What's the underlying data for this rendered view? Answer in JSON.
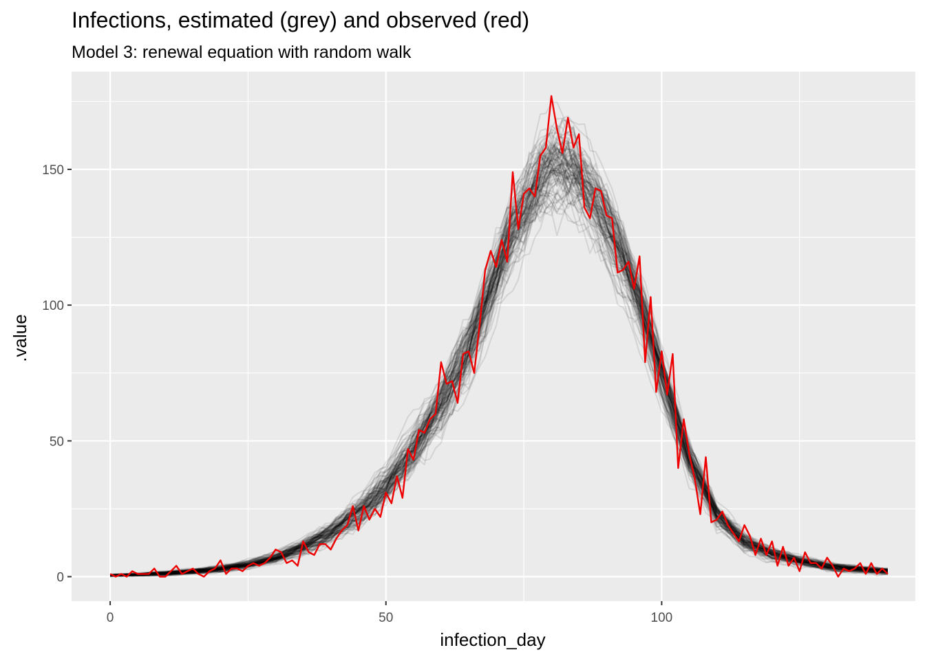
{
  "chart_data": {
    "type": "line",
    "title": "Infections, estimated (grey) and observed (red)",
    "subtitle": "Model 3: renewal equation with random walk",
    "xlabel": "infection_day",
    "ylabel": ".value",
    "xlim": [
      -7,
      146
    ],
    "ylim": [
      -9,
      186
    ],
    "x_ticks": [
      0,
      50,
      100
    ],
    "y_ticks": [
      0,
      50,
      100,
      150
    ],
    "grid": true,
    "legend": "none",
    "colors": {
      "panel": "#ebebeb",
      "grid": "#ffffff",
      "estimated": "#000000",
      "observed": "#ee0000"
    },
    "estimated_draws": {
      "count": 100,
      "x": [
        0,
        5,
        10,
        15,
        20,
        25,
        30,
        35,
        40,
        45,
        50,
        55,
        60,
        65,
        70,
        73,
        76,
        78,
        80,
        82,
        84,
        86,
        88,
        90,
        93,
        96,
        100,
        105,
        110,
        115,
        120,
        125,
        130,
        135,
        141
      ],
      "median": [
        0.5,
        0.8,
        1.3,
        2.0,
        3.0,
        4.5,
        7.0,
        11.0,
        16.5,
        24.0,
        34.0,
        47.0,
        64.0,
        85.0,
        112.0,
        129.0,
        141.0,
        148.0,
        152.0,
        153.0,
        150.0,
        145.0,
        139.0,
        131.0,
        118.0,
        102.0,
        75.0,
        44.0,
        23.0,
        13.0,
        8.5,
        6.0,
        4.0,
        3.0,
        2.0
      ],
      "spread": [
        0.3,
        0.3,
        0.5,
        0.6,
        0.8,
        1.0,
        1.3,
        1.8,
        2.5,
        3.5,
        4.5,
        5.5,
        6.5,
        8.0,
        9.0,
        9.5,
        10.0,
        11.0,
        11.0,
        11.0,
        11.0,
        10.0,
        9.0,
        8.5,
        8.0,
        7.0,
        6.0,
        4.5,
        3.0,
        2.2,
        1.6,
        1.2,
        1.0,
        0.9,
        0.8
      ]
    },
    "observed": {
      "x": [
        0,
        1,
        2,
        3,
        4,
        5,
        6,
        7,
        8,
        9,
        10,
        11,
        12,
        13,
        14,
        15,
        16,
        17,
        18,
        19,
        20,
        21,
        22,
        23,
        24,
        25,
        26,
        27,
        28,
        29,
        30,
        31,
        32,
        33,
        34,
        35,
        36,
        37,
        38,
        39,
        40,
        41,
        42,
        43,
        44,
        45,
        46,
        47,
        48,
        49,
        50,
        51,
        52,
        53,
        54,
        55,
        56,
        57,
        58,
        59,
        60,
        61,
        62,
        63,
        64,
        65,
        66,
        67,
        68,
        69,
        70,
        71,
        72,
        73,
        74,
        75,
        76,
        77,
        78,
        79,
        80,
        81,
        82,
        83,
        84,
        85,
        86,
        87,
        88,
        89,
        90,
        91,
        92,
        93,
        94,
        95,
        96,
        97,
        98,
        99,
        100,
        101,
        102,
        103,
        104,
        105,
        106,
        107,
        108,
        109,
        110,
        111,
        112,
        113,
        114,
        115,
        116,
        117,
        118,
        119,
        120,
        121,
        122,
        123,
        124,
        125,
        126,
        127,
        128,
        129,
        130,
        131,
        132,
        133,
        134,
        135,
        136,
        137,
        138,
        139,
        140,
        141
      ],
      "y": [
        1,
        0,
        1,
        0,
        2,
        1,
        1,
        1,
        3,
        0,
        0,
        2,
        4,
        1,
        2,
        3,
        1,
        0,
        2,
        3,
        6,
        1,
        3,
        3,
        2,
        4,
        5,
        4,
        5,
        7,
        10,
        9,
        5,
        6,
        4,
        13,
        9,
        8,
        12,
        12,
        10,
        14,
        17,
        19,
        26,
        17,
        26,
        21,
        25,
        22,
        31,
        27,
        37,
        29,
        47,
        43,
        54,
        53,
        58,
        60,
        79,
        71,
        72,
        64,
        82,
        83,
        75,
        93,
        113,
        120,
        114,
        124,
        116,
        149,
        128,
        141,
        143,
        140,
        155,
        158,
        177,
        165,
        156,
        169,
        158,
        163,
        136,
        132,
        143,
        142,
        133,
        132,
        112,
        113,
        116,
        106,
        118,
        79,
        103,
        68,
        83,
        67,
        82,
        40,
        58,
        45,
        36,
        23,
        44,
        20,
        21,
        24,
        19,
        16,
        13,
        19,
        15,
        8,
        14,
        8,
        13,
        4,
        11,
        4,
        7,
        2,
        9,
        5,
        5,
        3,
        7,
        4,
        0,
        3,
        2,
        3,
        5,
        1,
        5,
        1,
        3,
        1
      ]
    }
  }
}
